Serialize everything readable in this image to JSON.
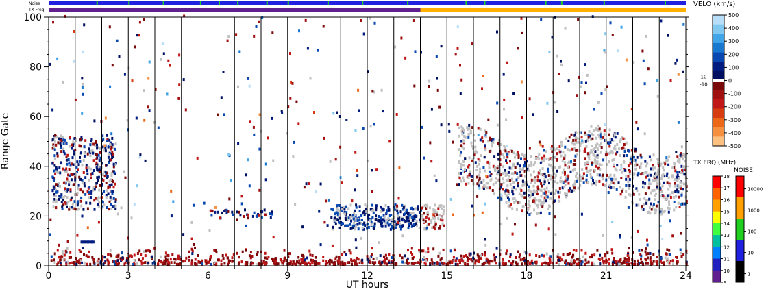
{
  "chart_data": {
    "type": "scatter",
    "title": "",
    "xlabel": "UT hours",
    "ylabel": "Range Gate",
    "xlim": [
      0,
      24
    ],
    "ylim": [
      0,
      100
    ],
    "x_ticks": [
      0,
      3,
      6,
      9,
      12,
      15,
      18,
      21,
      24
    ],
    "y_ticks": [
      0,
      20,
      40,
      60,
      80,
      100
    ],
    "grid": "vertical lines every hour",
    "legend": "right",
    "series": [
      {
        "name": "VELO (km/s)",
        "color_scale": "velocity"
      },
      {
        "name": "ground scatter",
        "color": "#c0c0c0"
      }
    ],
    "status_bars": [
      {
        "label": "Noise",
        "segments": [
          {
            "from": 0,
            "to": 24,
            "color": "#2020e0"
          }
        ],
        "ticks": [
          1.8,
          3.0,
          4.3,
          5.7,
          6.4,
          7.1,
          8.2,
          9.0,
          10.5,
          11.8,
          13.5,
          15.7,
          16.4,
          18.7,
          19.3,
          20.9,
          23.2
        ]
      },
      {
        "label": "TX Freq",
        "segments": [
          {
            "from": 0,
            "to": 14,
            "color": "#602090"
          },
          {
            "from": 14,
            "to": 24,
            "color": "#ffb000"
          }
        ]
      }
    ],
    "features": [
      {
        "desc": "echo band",
        "x": [
          0.1,
          2.5
        ],
        "y": [
          22,
          52
        ],
        "mix": "blue/red/grey"
      },
      {
        "desc": "echo band",
        "x": [
          10.6,
          14.0
        ],
        "y": [
          14,
          24
        ],
        "mix": "blue/grey"
      },
      {
        "desc": "ground scatter band",
        "x": [
          15.4,
          24.0
        ],
        "y": [
          24,
          50
        ],
        "mix": "grey/blue/red"
      },
      {
        "desc": "near-range band",
        "x": [
          0,
          24
        ],
        "y": [
          0,
          7
        ],
        "mix": "dark red"
      }
    ],
    "velocity_scale": {
      "title": "VELO (km/s)",
      "tick_labels": [
        "500",
        "400",
        "300",
        "200",
        "100",
        "0",
        "-100",
        "-200",
        "-300",
        "-400",
        "-500"
      ],
      "small_labels": [
        "10",
        "-10"
      ],
      "colors_top_to_bottom": [
        "#b8ddf8",
        "#80c8f0",
        "#40a4e8",
        "#1878d0",
        "#0848b0",
        "#001c80",
        "#001060",
        "#7a0a0a",
        "#a01010",
        "#c01818",
        "#d63c10",
        "#ec6818",
        "#f49040",
        "#fcc080"
      ]
    },
    "freq_scale": {
      "title": "TX FRQ (MHz)",
      "tick_labels": [
        "18",
        "17",
        "16",
        "15",
        "14",
        "13",
        "12",
        "11",
        "10",
        "9"
      ],
      "colors_top_to_bottom": [
        "#ff0000",
        "#ff6000",
        "#ffa000",
        "#ffff00",
        "#40ff40",
        "#00c0a0",
        "#0080ff",
        "#2020c0",
        "#602090"
      ]
    },
    "noise_scale": {
      "title": "NOISE",
      "tick_labels": [
        "10000",
        "1000",
        "100",
        "10",
        "1"
      ],
      "colors_top_to_bottom": [
        "#ff0000",
        "#ffa000",
        "#20d020",
        "#2020e0",
        "#000000"
      ]
    }
  }
}
